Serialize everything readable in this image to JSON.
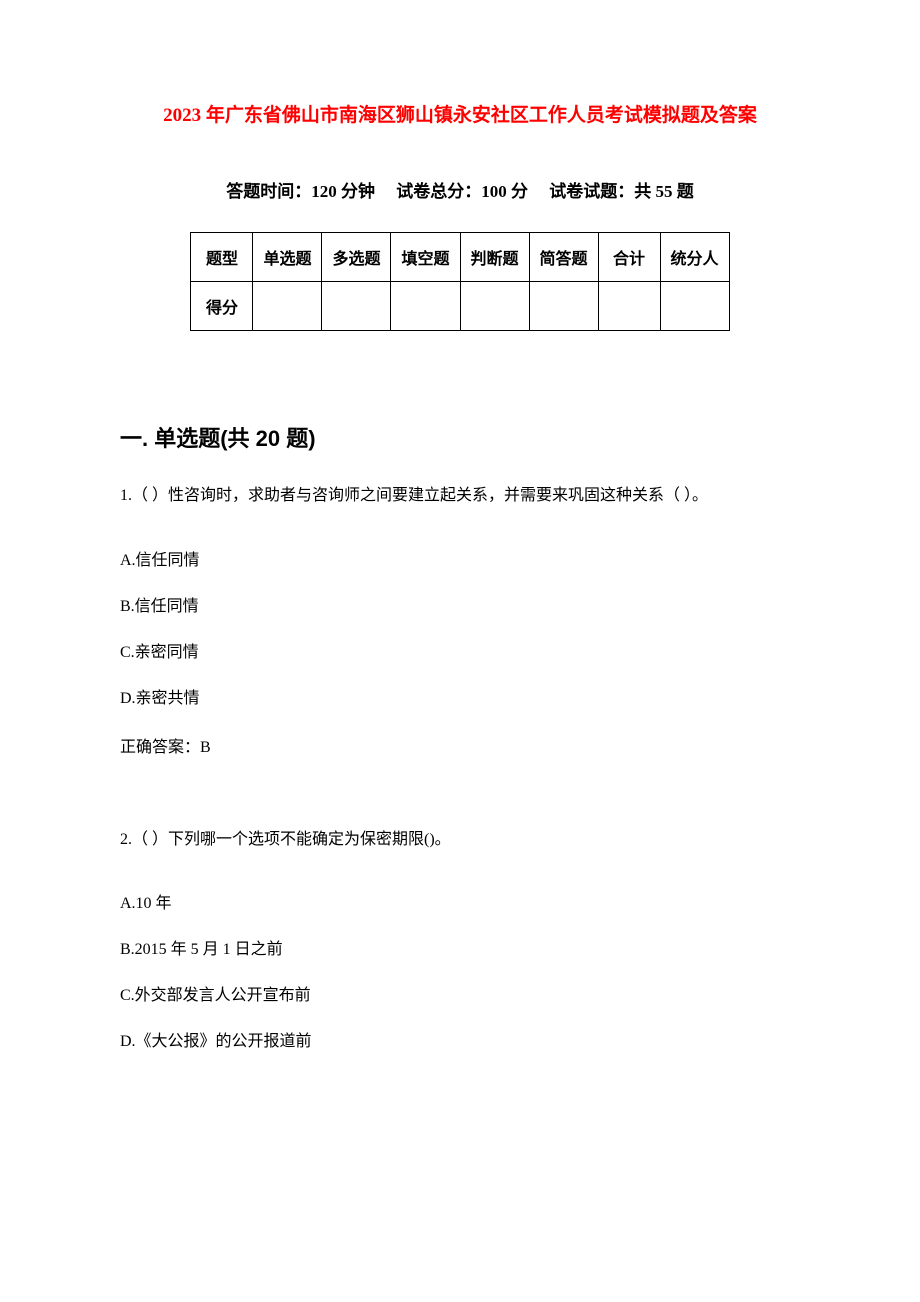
{
  "background_color": "#ffffff",
  "title": {
    "text": "2023 年广东省佛山市南海区狮山镇永安社区工作人员考试模拟题及答案",
    "color": "#ff0000",
    "fontsize": 19,
    "fontweight": "bold"
  },
  "exam_info": {
    "time_label": "答题时间：",
    "time_value": "120 分钟",
    "total_label": "试卷总分：",
    "total_value": "100 分",
    "count_label": "试卷试题：",
    "count_value": "共 55 题",
    "fontsize": 17,
    "color": "#000000"
  },
  "score_table": {
    "border_color": "#000000",
    "header_row": [
      "题型",
      "单选题",
      "多选题",
      "填空题",
      "判断题",
      "简答题",
      "合计",
      "统分人"
    ],
    "score_row_label": "得分",
    "empty_cells_count": 7,
    "cell_fontsize": 16
  },
  "section1": {
    "heading": "一. 单选题(共 20 题)",
    "heading_fontsize": 22,
    "heading_color": "#000000"
  },
  "q1": {
    "text": "1.（ ）性咨询时，求助者与咨询师之间要建立起关系，并需要来巩固这种关系（ ）。",
    "options": {
      "a": "A.信任同情",
      "b": "B.信任同情",
      "c": "C.亲密同情",
      "d": "D.亲密共情"
    },
    "answer_label": "正确答案：",
    "answer_value": "B"
  },
  "q2": {
    "text": "2.（ ）下列哪一个选项不能确定为保密期限()。",
    "options": {
      "a": "A.10 年",
      "b": "B.2015 年 5 月 1 日之前",
      "c": "C.外交部发言人公开宣布前",
      "d": "D.《大公报》的公开报道前"
    }
  },
  "body_text": {
    "fontsize": 16,
    "color": "#000000",
    "line_height": 1.6,
    "option_spacing": 22
  }
}
